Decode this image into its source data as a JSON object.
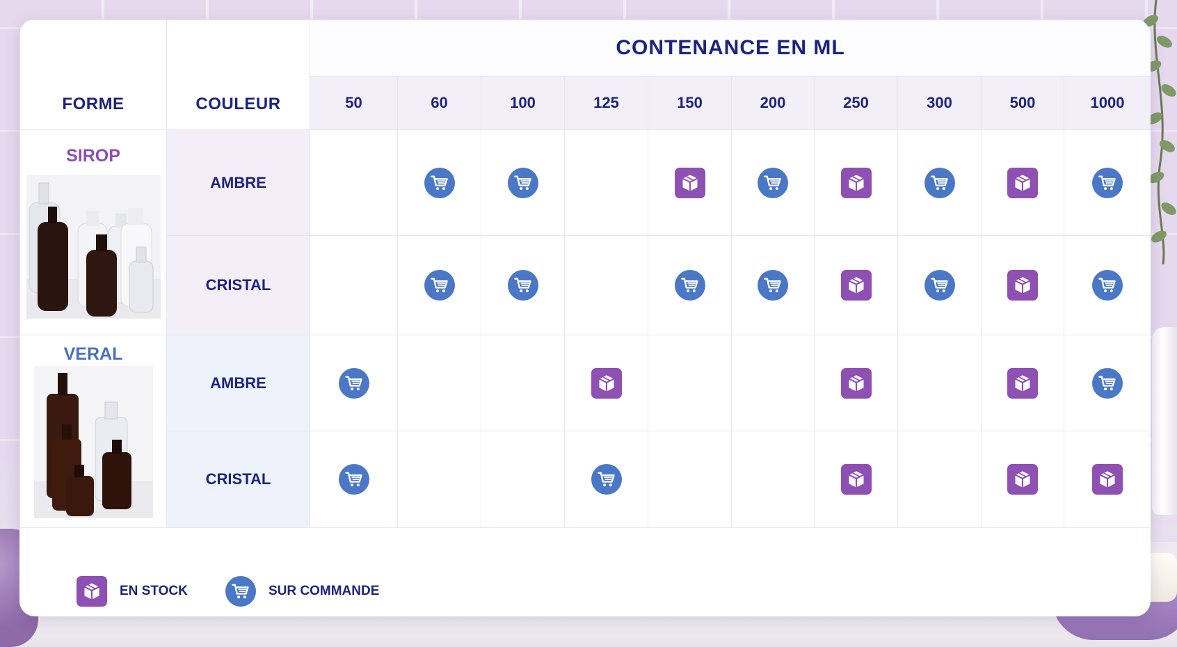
{
  "table": {
    "forme_header": "FORME",
    "couleur_header": "COULEUR",
    "title": "CONTENANCE EN ML",
    "sizes": [
      "50",
      "60",
      "100",
      "125",
      "150",
      "200",
      "250",
      "300",
      "500",
      "1000"
    ]
  },
  "groups": [
    {
      "forme": "SIROP",
      "rows": [
        {
          "couleur": "AMBRE",
          "cells": [
            "",
            "commande",
            "commande",
            "",
            "stock",
            "commande",
            "stock",
            "commande",
            "stock",
            "commande"
          ]
        },
        {
          "couleur": "CRISTAL",
          "cells": [
            "",
            "commande",
            "commande",
            "",
            "commande",
            "commande",
            "stock",
            "commande",
            "stock",
            "commande"
          ]
        }
      ]
    },
    {
      "forme": "VERAL",
      "rows": [
        {
          "couleur": "AMBRE",
          "cells": [
            "commande",
            "",
            "",
            "stock",
            "",
            "",
            "stock",
            "",
            "stock",
            "commande"
          ]
        },
        {
          "couleur": "CRISTAL",
          "cells": [
            "commande",
            "",
            "",
            "commande",
            "",
            "",
            "stock",
            "",
            "stock",
            "stock"
          ]
        }
      ]
    }
  ],
  "legend": {
    "stock_label": "EN STOCK",
    "commande_label": "SUR COMMANDE"
  },
  "icons": {
    "stock": "box-icon",
    "commande": "cart-icon"
  },
  "colors": {
    "stock": "#8e50b2",
    "commande": "#4a78c6",
    "text": "#1c2380",
    "sirop": "#8a4fb4",
    "veral": "#4a6fc0"
  }
}
